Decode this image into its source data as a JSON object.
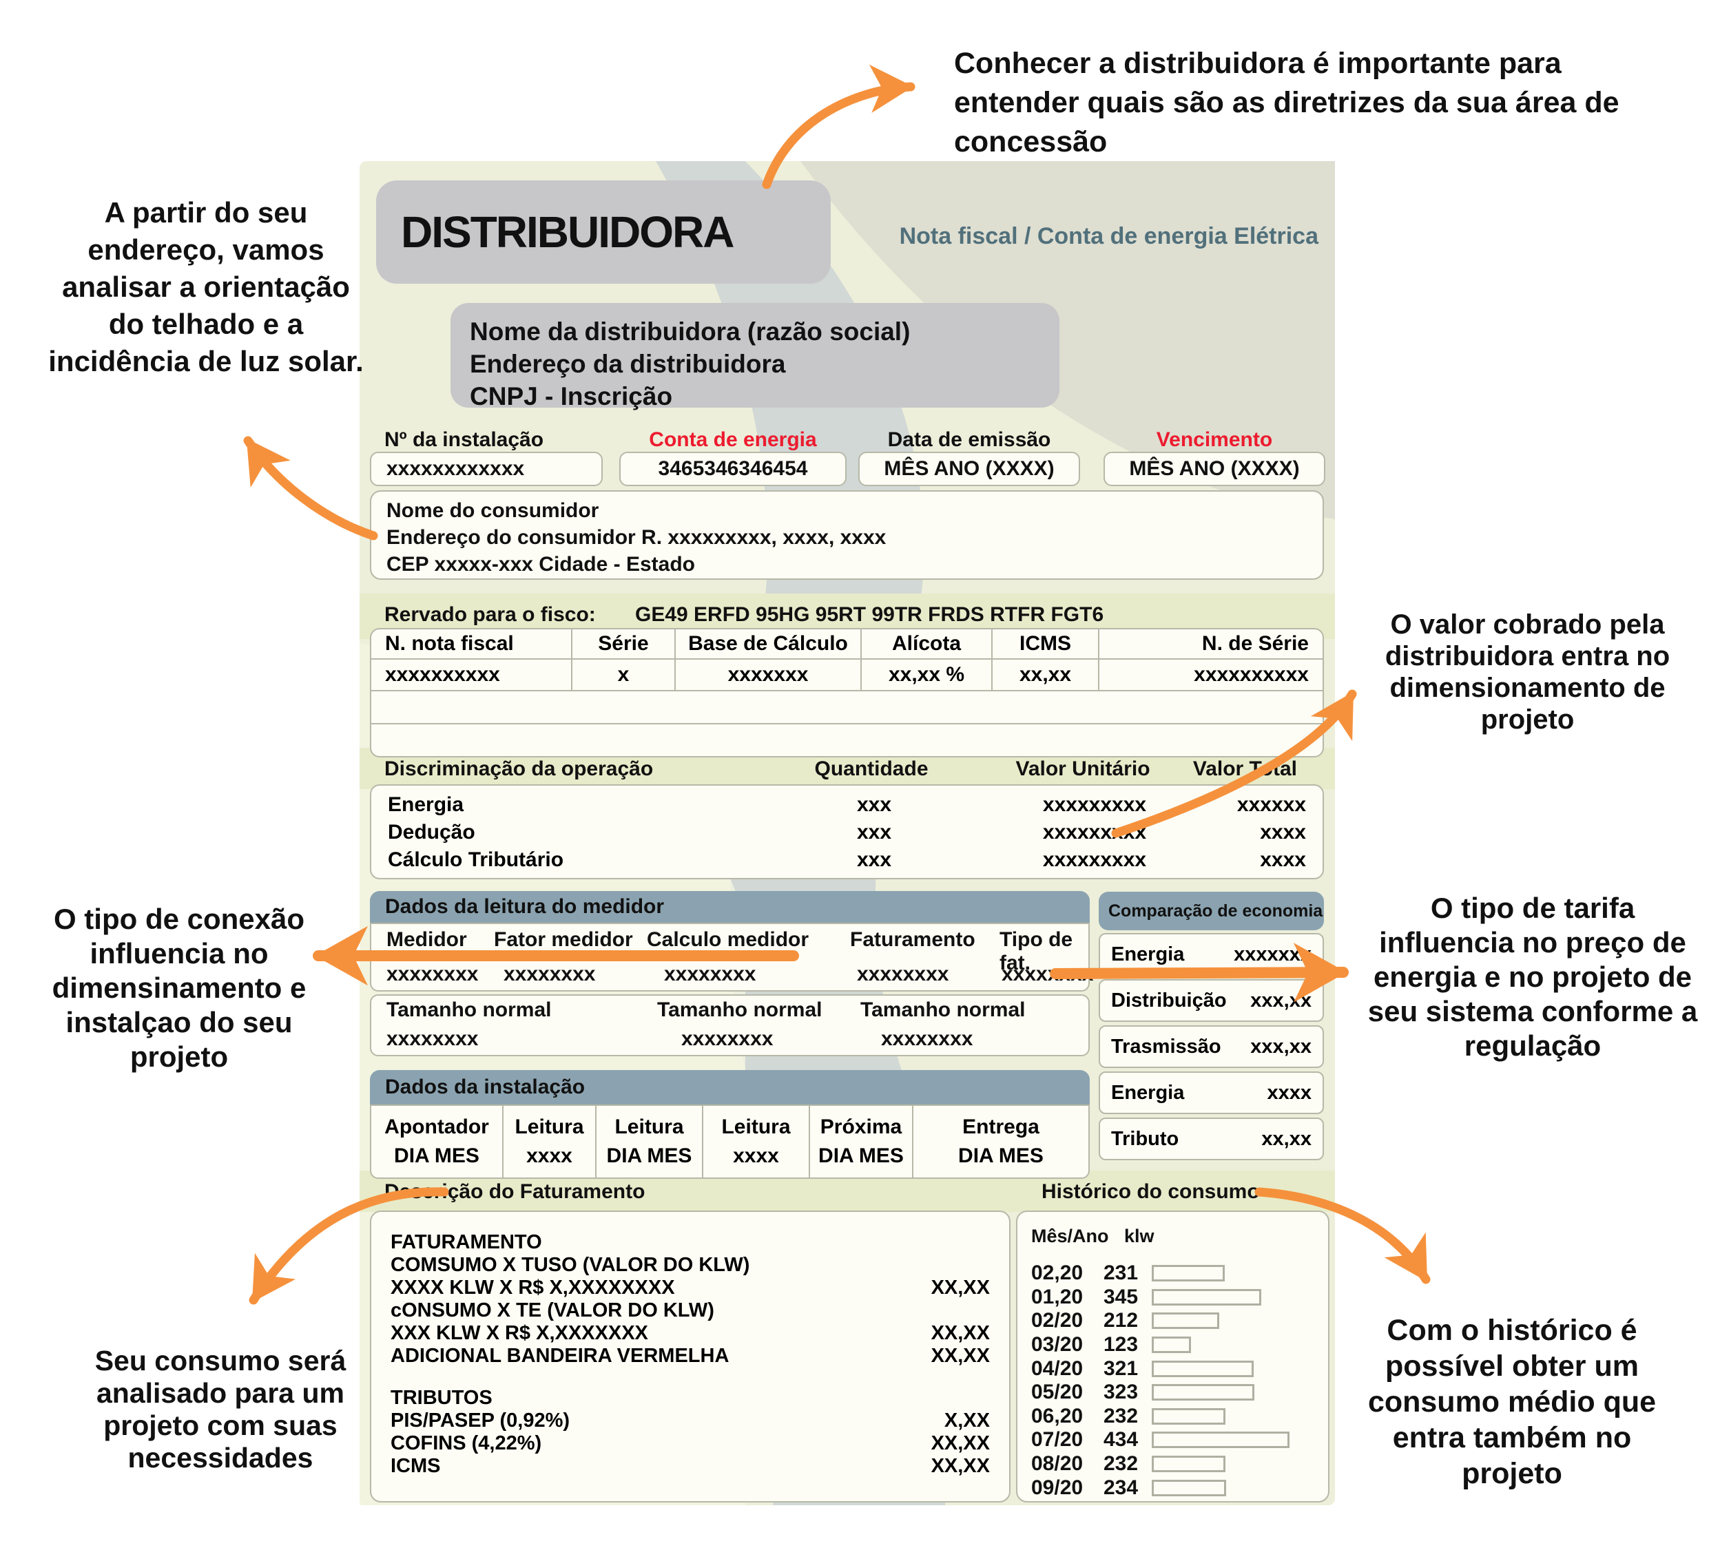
{
  "colors": {
    "accent": "#F5913C",
    "red": "#ED1B2F",
    "slate": "#51707B",
    "bar": "#8BA3B0",
    "band": "#E8EBC9",
    "billbg": "#EDEFDA",
    "boxborder": "#B7B8A8"
  },
  "annotations": {
    "top": "Conhecer a distribuidora é importante para entender quais são as diretrizes da sua área de concessão",
    "left_top": "A partir do seu endereço, vamos analisar a orientação do telhado e a incidência de luz solar.",
    "left_mid": "O tipo de conexão influencia no dimensinamento e instalçao do seu projeto",
    "left_bottom": "Seu consumo será analisado para um projeto com suas necessidades",
    "right_top": "O valor cobrado pela distribuidora entra no dimensionamento de projeto",
    "right_mid": "O tipo de tarifa influencia no preço de energia e no projeto de seu sistema conforme a regulação",
    "right_bottom": "Com o histórico é possível obter um consumo médio que entra também no projeto"
  },
  "header": {
    "brand": "DISTRIBUIDORA",
    "doc_type": "Nota fiscal / Conta de energia Elétrica",
    "company_lines": [
      "Nome da distribuidora (razão social)",
      "Endereço da distribuidora",
      "CNPJ - Inscrição"
    ]
  },
  "fields": [
    {
      "label": "Nº da instalação",
      "value": "xxxxxxxxxxxx"
    },
    {
      "label": "Conta de energia",
      "value": "3465346346454"
    },
    {
      "label": "Data de emissão",
      "value": "MÊS ANO (XXXX)"
    },
    {
      "label": "Vencimento",
      "value": "MÊS ANO (XXXX)"
    }
  ],
  "consumer": {
    "lines": [
      "Nome do consumidor",
      "Endereço do consumidor   R. xxxxxxxxx, xxxx, xxxx",
      "CEP xxxxx-xxx Cidade  - Estado"
    ]
  },
  "fisco": {
    "label": "Rervado para o fisco:",
    "code": "GE49 ERFD 95HG 95RT 99TR FRDS RTFR FGT6",
    "headers": [
      "N. nota fiscal",
      "Série",
      "Base de Cálculo",
      "Alícota",
      "ICMS",
      "N. de Série"
    ],
    "values": [
      "xxxxxxxxxx",
      "x",
      "xxxxxxx",
      "xx,xx %",
      "xx,xx",
      "xxxxxxxxxx"
    ]
  },
  "operacao": {
    "headers": [
      "Discriminação da operação",
      "Quantidade",
      "Valor Unitário",
      "Valor Total"
    ],
    "rows": [
      {
        "name": "Energia",
        "qty": "xxx",
        "unit": "xxxxxxxxx",
        "total": "xxxxxx"
      },
      {
        "name": "Dedução",
        "qty": "xxx",
        "unit": "xxxxxxxxx",
        "total": "xxxx"
      },
      {
        "name": "Cálculo Tributário",
        "qty": "xxx",
        "unit": "xxxxxxxxx",
        "total": "xxxx"
      }
    ]
  },
  "leitura": {
    "title": "Dados da leitura do medidor",
    "cols": [
      "Medidor",
      "Fator medidor",
      "Calculo medidor",
      "Faturamento",
      "Tipo de fat."
    ],
    "vals": [
      "xxxxxxxx",
      "xxxxxxxx",
      "xxxxxxxx",
      "xxxxxxxx",
      "xxxxxxxx"
    ],
    "tl": [
      "Tamanho normal",
      "Tamanho normal",
      "Tamanho normal"
    ],
    "tv": [
      "xxxxxxxx",
      "xxxxxxxx",
      "xxxxxxxx"
    ]
  },
  "comparacao": {
    "title": "Comparação de economia",
    "rows": [
      {
        "label": "Energia",
        "value": "xxxxxxx"
      },
      {
        "label": "Distribuição",
        "value": "xxx,xx"
      },
      {
        "label": "Trasmissão",
        "value": "xxx,xx"
      },
      {
        "label": "Energia",
        "value": "xxxx"
      },
      {
        "label": "Tributo",
        "value": "xx,xx"
      }
    ]
  },
  "instalacao": {
    "title": "Dados da instalação",
    "cols": [
      {
        "l1": "Apontador",
        "l2": "DIA MES"
      },
      {
        "l1": "Leitura",
        "l2": "xxxx"
      },
      {
        "l1": "Leitura",
        "l2": "DIA MES"
      },
      {
        "l1": "Leitura",
        "l2": "xxxx"
      },
      {
        "l1": "Próxima",
        "l2": "DIA MES"
      },
      {
        "l1": "Entrega",
        "l2": "DIA MES"
      }
    ]
  },
  "faturamento": {
    "title": "Descrição do Faturamento",
    "rows": [
      {
        "t": "FATURAMENTO",
        "v": ""
      },
      {
        "t": "COMSUMO X TUSO (VALOR DO KLW)",
        "v": ""
      },
      {
        "t": "XXXX KLW X R$ X,XXXXXXXX",
        "v": "XX,XX"
      },
      {
        "t": "cONSUMO X TE (VALOR DO KLW)",
        "v": ""
      },
      {
        "t": "XXX KLW X R$ X,XXXXXXX",
        "v": "XX,XX"
      },
      {
        "t": "ADICIONAL BANDEIRA VERMELHA",
        "v": "XX,XX"
      },
      {
        "t": "TRIBUTOS",
        "v": ""
      },
      {
        "t": "PIS/PASEP (0,92%)",
        "v": "X,XX"
      },
      {
        "t": "COFINS (4,22%)",
        "v": "XX,XX"
      },
      {
        "t": "ICMS",
        "v": "XX,XX"
      }
    ]
  },
  "historico": {
    "title": "Histórico do consumo",
    "col_mes": "Mês/Ano",
    "col_klw": "klw",
    "max": 434,
    "rows": [
      {
        "mes": "02,20",
        "klw": 231
      },
      {
        "mes": "01,20",
        "klw": 345
      },
      {
        "mes": "02/20",
        "klw": 212
      },
      {
        "mes": "03/20",
        "klw": 123
      },
      {
        "mes": "04/20",
        "klw": 321
      },
      {
        "mes": "05/20",
        "klw": 323
      },
      {
        "mes": "06,20",
        "klw": 232
      },
      {
        "mes": "07/20",
        "klw": 434
      },
      {
        "mes": "08/20",
        "klw": 232
      },
      {
        "mes": "09/20",
        "klw": 234
      }
    ]
  }
}
